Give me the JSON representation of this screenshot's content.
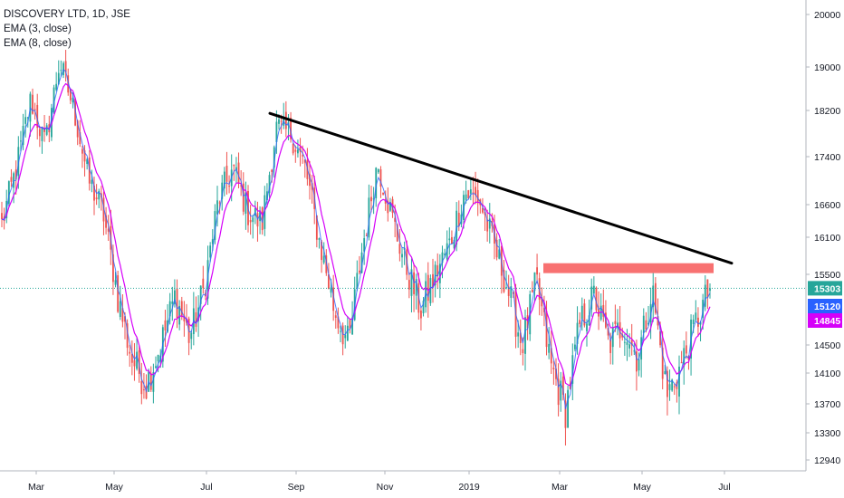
{
  "chart_data": {
    "type": "candlestick",
    "title": "DISCOVERY LTD, 1D, JSE",
    "indicators": [
      "EMA (3, close)",
      "EMA (8, close)"
    ],
    "y_ticks": [
      20000,
      19000,
      18200,
      17400,
      16600,
      16100,
      15500,
      14500,
      14100,
      13700,
      13300,
      12940
    ],
    "x_ticks": [
      "Mar",
      "May",
      "Jul",
      "Sep",
      "Nov",
      "2019",
      "Mar",
      "May",
      "Jul"
    ],
    "price_badges": [
      {
        "value": "15303",
        "color": "#26a69a"
      },
      {
        "value": "15120",
        "color": "#2962ff"
      },
      {
        "value": "14845",
        "color": "#d500f9"
      }
    ],
    "current_price": 15303,
    "trendline": {
      "start_price": 18150,
      "end_price": 15680,
      "color": "#000000"
    },
    "resistance_zone": {
      "price_low": 15520,
      "price_high": 15680,
      "color": "#f87171"
    },
    "series_path": [
      16300,
      17200,
      18400,
      17600,
      19100,
      18200,
      17000,
      16500,
      15200,
      14300,
      13950,
      14500,
      15200,
      14600,
      15300,
      16700,
      17200,
      16500,
      16300,
      17900,
      17800,
      17200,
      16000,
      15000,
      14500,
      16000,
      17300,
      16400,
      15600,
      15000,
      15500,
      16000,
      16800,
      16700,
      16000,
      15300,
      14500,
      15400,
      14200,
      13600,
      14800,
      15200,
      14500,
      14800,
      14300,
      15300,
      13800,
      14200,
      14800,
      15303
    ],
    "colors": {
      "up": "#26a69a",
      "down": "#ef5350",
      "ema3": "#2962ff",
      "ema8": "#d500f9"
    }
  }
}
